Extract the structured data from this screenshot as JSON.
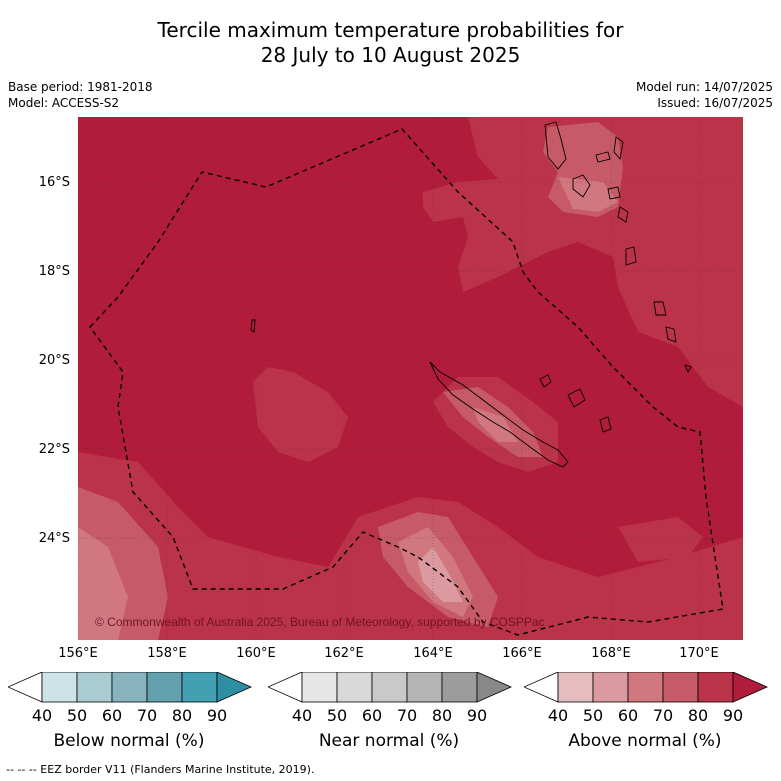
{
  "title": {
    "line1": "Tercile maximum temperature probabilities for",
    "line2": "28 July to 10 August 2025"
  },
  "meta_left": {
    "base_period": "Base period: 1981-2018",
    "model": "Model: ACCESS-S2"
  },
  "meta_right": {
    "model_run": "Model run: 14/07/2025",
    "issued": "Issued: 16/07/2025"
  },
  "map": {
    "latitude_labels": [
      "16°S",
      "18°S",
      "20°S",
      "22°S",
      "24°S"
    ],
    "longitude_labels": [
      "156°E",
      "158°E",
      "160°E",
      "162°E",
      "164°E",
      "166°E",
      "168°E",
      "170°E"
    ],
    "copyright": "© Commonwealth of Australia 2025, Bureau of Meteorology, supported by COSPPac",
    "colors": {
      "above_90": "#b01c3a",
      "above_80": "#bb3349",
      "above_70": "#c65a66",
      "above_60": "#d0777f",
      "above_50": "#da9aa0",
      "above_40": "#e5bcc0"
    }
  },
  "colorbars": [
    {
      "label": "Below normal (%)",
      "ticks": [
        "40",
        "50",
        "60",
        "70",
        "80",
        "90"
      ],
      "colors": [
        "#ffffff",
        "#cde3e8",
        "#a9cbd2",
        "#87b4be",
        "#63a1ae",
        "#43a0b2",
        "#2f8fa2"
      ]
    },
    {
      "label": "Near normal (%)",
      "ticks": [
        "40",
        "50",
        "60",
        "70",
        "80",
        "90"
      ],
      "colors": [
        "#ffffff",
        "#e6e6e6",
        "#d9d9d9",
        "#c9c9c9",
        "#b5b5b5",
        "#9c9c9c",
        "#888888"
      ]
    },
    {
      "label": "Above normal (%)",
      "ticks": [
        "40",
        "50",
        "60",
        "70",
        "80",
        "90"
      ],
      "colors": [
        "#ffffff",
        "#e5bcc0",
        "#da9aa0",
        "#d0777f",
        "#c65a66",
        "#bb3349",
        "#b01c3a"
      ]
    }
  ],
  "footer": "--  --  -- EEZ border V11 (Flanders Marine Institute, 2019)."
}
